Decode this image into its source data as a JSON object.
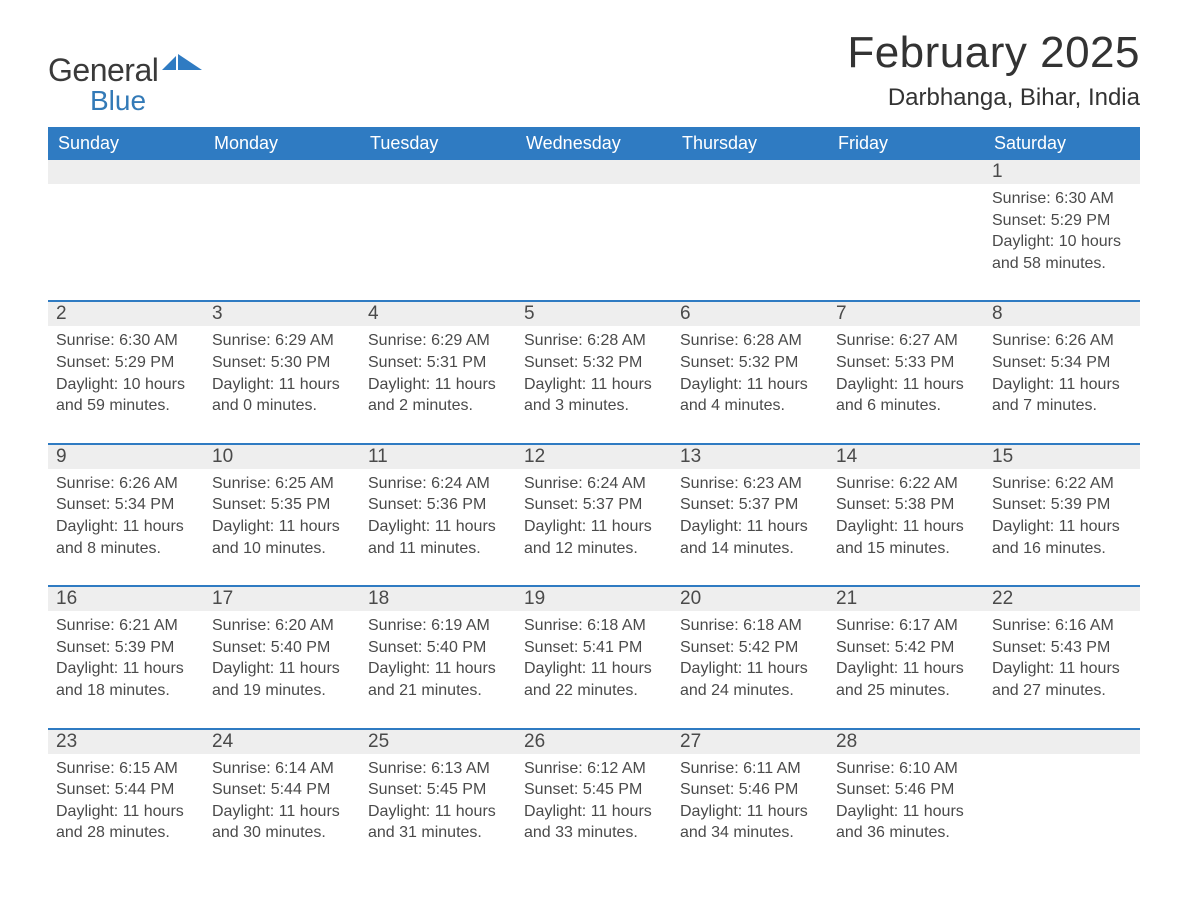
{
  "brand": {
    "word1": "General",
    "word2": "Blue",
    "colors": {
      "word1": "#3a3a3a",
      "word2": "#337ab7",
      "flag": "#2f7bc2"
    }
  },
  "title": {
    "month_year": "February 2025",
    "location": "Darbhanga, Bihar, India"
  },
  "styles": {
    "header_bg": "#2f7bc2",
    "header_text": "#ffffff",
    "daynum_bg": "#eeeeee",
    "row_border": "#2f7bc2",
    "body_text": "#4a4a4a",
    "page_bg": "#ffffff",
    "title_fontsize_pt": 33,
    "location_fontsize_pt": 18,
    "dow_fontsize_pt": 14,
    "daynum_fontsize_pt": 14,
    "details_fontsize_pt": 12
  },
  "calendar": {
    "type": "table",
    "days_of_week": [
      "Sunday",
      "Monday",
      "Tuesday",
      "Wednesday",
      "Thursday",
      "Friday",
      "Saturday"
    ],
    "labels": {
      "sunrise_prefix": "Sunrise: ",
      "sunset_prefix": "Sunset: ",
      "daylight_prefix": "Daylight: "
    },
    "weeks": [
      [
        null,
        null,
        null,
        null,
        null,
        null,
        {
          "n": "1",
          "sunrise": "6:30 AM",
          "sunset": "5:29 PM",
          "daylight": "10 hours and 58 minutes."
        }
      ],
      [
        {
          "n": "2",
          "sunrise": "6:30 AM",
          "sunset": "5:29 PM",
          "daylight": "10 hours and 59 minutes."
        },
        {
          "n": "3",
          "sunrise": "6:29 AM",
          "sunset": "5:30 PM",
          "daylight": "11 hours and 0 minutes."
        },
        {
          "n": "4",
          "sunrise": "6:29 AM",
          "sunset": "5:31 PM",
          "daylight": "11 hours and 2 minutes."
        },
        {
          "n": "5",
          "sunrise": "6:28 AM",
          "sunset": "5:32 PM",
          "daylight": "11 hours and 3 minutes."
        },
        {
          "n": "6",
          "sunrise": "6:28 AM",
          "sunset": "5:32 PM",
          "daylight": "11 hours and 4 minutes."
        },
        {
          "n": "7",
          "sunrise": "6:27 AM",
          "sunset": "5:33 PM",
          "daylight": "11 hours and 6 minutes."
        },
        {
          "n": "8",
          "sunrise": "6:26 AM",
          "sunset": "5:34 PM",
          "daylight": "11 hours and 7 minutes."
        }
      ],
      [
        {
          "n": "9",
          "sunrise": "6:26 AM",
          "sunset": "5:34 PM",
          "daylight": "11 hours and 8 minutes."
        },
        {
          "n": "10",
          "sunrise": "6:25 AM",
          "sunset": "5:35 PM",
          "daylight": "11 hours and 10 minutes."
        },
        {
          "n": "11",
          "sunrise": "6:24 AM",
          "sunset": "5:36 PM",
          "daylight": "11 hours and 11 minutes."
        },
        {
          "n": "12",
          "sunrise": "6:24 AM",
          "sunset": "5:37 PM",
          "daylight": "11 hours and 12 minutes."
        },
        {
          "n": "13",
          "sunrise": "6:23 AM",
          "sunset": "5:37 PM",
          "daylight": "11 hours and 14 minutes."
        },
        {
          "n": "14",
          "sunrise": "6:22 AM",
          "sunset": "5:38 PM",
          "daylight": "11 hours and 15 minutes."
        },
        {
          "n": "15",
          "sunrise": "6:22 AM",
          "sunset": "5:39 PM",
          "daylight": "11 hours and 16 minutes."
        }
      ],
      [
        {
          "n": "16",
          "sunrise": "6:21 AM",
          "sunset": "5:39 PM",
          "daylight": "11 hours and 18 minutes."
        },
        {
          "n": "17",
          "sunrise": "6:20 AM",
          "sunset": "5:40 PM",
          "daylight": "11 hours and 19 minutes."
        },
        {
          "n": "18",
          "sunrise": "6:19 AM",
          "sunset": "5:40 PM",
          "daylight": "11 hours and 21 minutes."
        },
        {
          "n": "19",
          "sunrise": "6:18 AM",
          "sunset": "5:41 PM",
          "daylight": "11 hours and 22 minutes."
        },
        {
          "n": "20",
          "sunrise": "6:18 AM",
          "sunset": "5:42 PM",
          "daylight": "11 hours and 24 minutes."
        },
        {
          "n": "21",
          "sunrise": "6:17 AM",
          "sunset": "5:42 PM",
          "daylight": "11 hours and 25 minutes."
        },
        {
          "n": "22",
          "sunrise": "6:16 AM",
          "sunset": "5:43 PM",
          "daylight": "11 hours and 27 minutes."
        }
      ],
      [
        {
          "n": "23",
          "sunrise": "6:15 AM",
          "sunset": "5:44 PM",
          "daylight": "11 hours and 28 minutes."
        },
        {
          "n": "24",
          "sunrise": "6:14 AM",
          "sunset": "5:44 PM",
          "daylight": "11 hours and 30 minutes."
        },
        {
          "n": "25",
          "sunrise": "6:13 AM",
          "sunset": "5:45 PM",
          "daylight": "11 hours and 31 minutes."
        },
        {
          "n": "26",
          "sunrise": "6:12 AM",
          "sunset": "5:45 PM",
          "daylight": "11 hours and 33 minutes."
        },
        {
          "n": "27",
          "sunrise": "6:11 AM",
          "sunset": "5:46 PM",
          "daylight": "11 hours and 34 minutes."
        },
        {
          "n": "28",
          "sunrise": "6:10 AM",
          "sunset": "5:46 PM",
          "daylight": "11 hours and 36 minutes."
        },
        null
      ]
    ]
  }
}
